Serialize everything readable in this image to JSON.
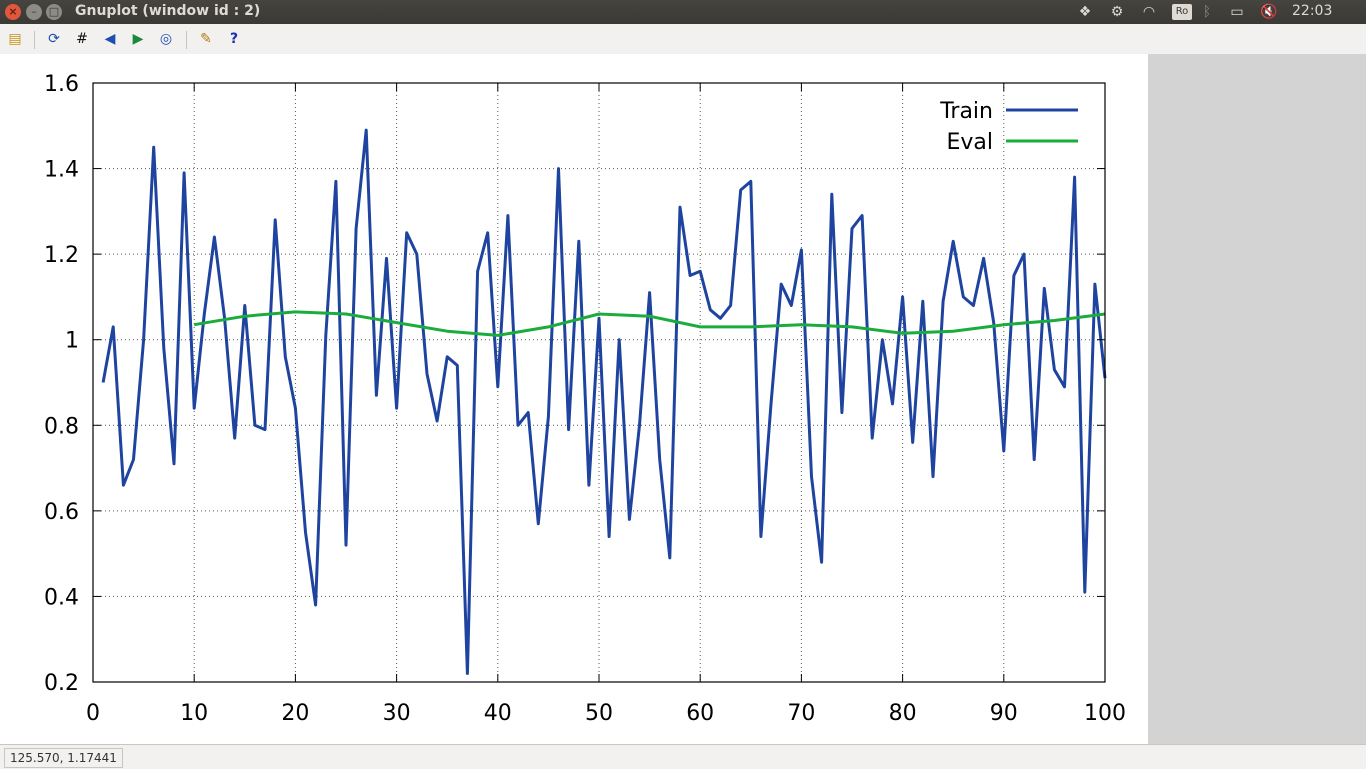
{
  "window": {
    "title": "Gnuplot (window id : 2)"
  },
  "system_tray": {
    "keyboard_layout": "Ro",
    "clock": "22:03"
  },
  "toolbar": {
    "items": [
      {
        "name": "copy-clipboard-button",
        "icon": "clipboard-icon"
      },
      {
        "name": "replot-button",
        "icon": "replot-icon"
      },
      {
        "name": "grid-button",
        "icon": "grid-icon"
      },
      {
        "name": "previous-zoom-button",
        "icon": "zoom-back-icon"
      },
      {
        "name": "next-zoom-button",
        "icon": "zoom-forward-icon"
      },
      {
        "name": "autoscale-button",
        "icon": "zoom-autoscale-icon"
      },
      {
        "name": "options-button",
        "icon": "wrench-icon"
      },
      {
        "name": "help-button",
        "icon": "help-icon"
      }
    ]
  },
  "status": {
    "text": "125.570,  1.17441"
  },
  "chart_data": {
    "type": "line",
    "title": "",
    "xlabel": "",
    "ylabel": "",
    "xlim": [
      0,
      100
    ],
    "ylim": [
      0.2,
      1.6
    ],
    "xticks": [
      "0",
      "10",
      "20",
      "30",
      "40",
      "50",
      "60",
      "70",
      "80",
      "90",
      "100"
    ],
    "yticks": [
      "0.2",
      "0.4",
      "0.6",
      "0.8",
      "1",
      "1.2",
      "1.4",
      "1.6"
    ],
    "grid": true,
    "legend_position": "top-right",
    "series": [
      {
        "name": "Train",
        "color": "#1f44a0",
        "x": [
          1,
          2,
          3,
          4,
          5,
          6,
          7,
          8,
          9,
          10,
          11,
          12,
          13,
          14,
          15,
          16,
          17,
          18,
          19,
          20,
          21,
          22,
          23,
          24,
          25,
          26,
          27,
          28,
          29,
          30,
          31,
          32,
          33,
          34,
          35,
          36,
          37,
          38,
          39,
          40,
          41,
          42,
          43,
          44,
          45,
          46,
          47,
          48,
          49,
          50,
          51,
          52,
          53,
          54,
          55,
          56,
          57,
          58,
          59,
          60,
          61,
          62,
          63,
          64,
          65,
          66,
          67,
          68,
          69,
          70,
          71,
          72,
          73,
          74,
          75,
          76,
          77,
          78,
          79,
          80,
          81,
          82,
          83,
          84,
          85,
          86,
          87,
          88,
          89,
          90,
          91,
          92,
          93,
          94,
          95,
          96,
          97,
          98,
          99,
          100
        ],
        "values": [
          0.9,
          1.03,
          0.66,
          0.72,
          1.0,
          1.45,
          0.98,
          0.71,
          1.39,
          0.84,
          1.06,
          1.24,
          1.05,
          0.77,
          1.08,
          0.8,
          0.79,
          1.28,
          0.96,
          0.84,
          0.55,
          0.38,
          1.01,
          1.37,
          0.52,
          1.26,
          1.49,
          0.87,
          1.19,
          0.84,
          1.25,
          1.2,
          0.92,
          0.81,
          0.96,
          0.94,
          0.22,
          1.16,
          1.25,
          0.89,
          1.29,
          0.8,
          0.83,
          0.57,
          0.82,
          1.4,
          0.79,
          1.23,
          0.66,
          1.05,
          0.54,
          1.0,
          0.58,
          0.8,
          1.11,
          0.72,
          0.49,
          1.31,
          1.15,
          1.16,
          1.07,
          1.05,
          1.08,
          1.35,
          1.37,
          0.54,
          0.85,
          1.13,
          1.08,
          1.21,
          0.68,
          0.48,
          1.34,
          0.83,
          1.26,
          1.29,
          0.77,
          1.0,
          0.85,
          1.1,
          0.76,
          1.09,
          0.68,
          1.09,
          1.23,
          1.1,
          1.08,
          1.19,
          1.04,
          0.74,
          1.15,
          1.2,
          0.72,
          1.12,
          0.93,
          0.89,
          1.38,
          0.41,
          1.13,
          0.91
        ]
      },
      {
        "name": "Eval",
        "color": "#1aac3c",
        "x": [
          10,
          15,
          20,
          25,
          30,
          35,
          40,
          45,
          50,
          55,
          60,
          65,
          70,
          75,
          80,
          85,
          90,
          95,
          100
        ],
        "values": [
          1.035,
          1.055,
          1.065,
          1.06,
          1.04,
          1.02,
          1.01,
          1.03,
          1.06,
          1.055,
          1.03,
          1.03,
          1.035,
          1.03,
          1.015,
          1.02,
          1.035,
          1.045,
          1.06
        ]
      }
    ]
  }
}
